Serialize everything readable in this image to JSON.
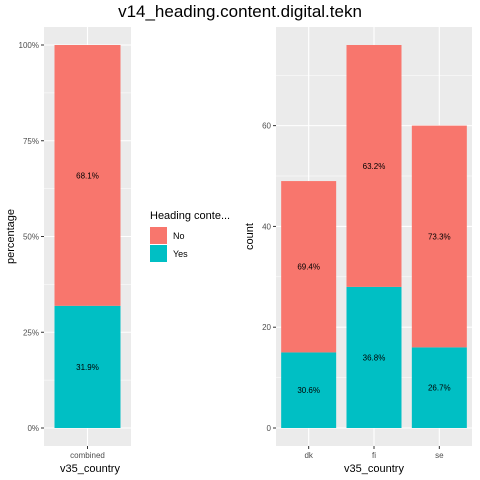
{
  "title": "v14_heading.content.digital.tekn",
  "legend": {
    "title": "Heading conte...",
    "items": [
      {
        "label": "No",
        "color": "#F8766D"
      },
      {
        "label": "Yes",
        "color": "#00BFC4"
      }
    ]
  },
  "colors": {
    "panel_bg": "#EBEBEB",
    "grid": "#FFFFFF",
    "axis_text": "#4D4D4D"
  },
  "chart_data": [
    {
      "type": "bar",
      "stacked": true,
      "categories": [
        "combined"
      ],
      "series": [
        {
          "name": "No",
          "values": [
            68.1
          ],
          "labels": [
            "68.1%"
          ]
        },
        {
          "name": "Yes",
          "values": [
            31.9
          ],
          "labels": [
            "31.9%"
          ]
        }
      ],
      "xlabel": "v35_country",
      "ylabel": "percentage",
      "ylim": [
        0,
        100
      ],
      "yticks": [
        0,
        25,
        50,
        75,
        100
      ],
      "ytick_labels": [
        "0%",
        "25%",
        "50%",
        "75%",
        "100%"
      ]
    },
    {
      "type": "bar",
      "stacked": true,
      "categories": [
        "dk",
        "fi",
        "se"
      ],
      "series": [
        {
          "name": "No",
          "values": [
            34,
            48,
            44
          ],
          "labels": [
            "69.4%",
            "63.2%",
            "73.3%"
          ]
        },
        {
          "name": "Yes",
          "values": [
            15,
            28,
            16
          ],
          "labels": [
            "30.6%",
            "36.8%",
            "26.7%"
          ]
        }
      ],
      "xlabel": "v35_country",
      "ylabel": "count",
      "ylim": [
        0,
        76
      ],
      "yticks": [
        0,
        20,
        40,
        60
      ],
      "ytick_labels": [
        "0",
        "20",
        "40",
        "60"
      ]
    }
  ]
}
